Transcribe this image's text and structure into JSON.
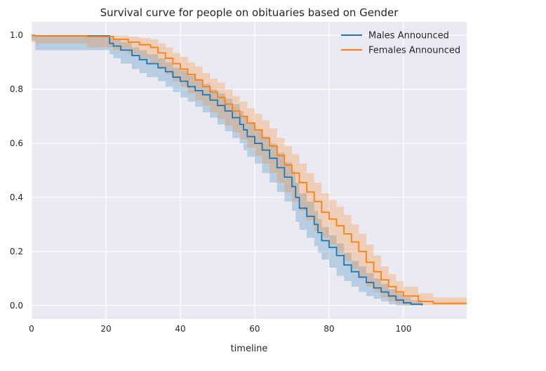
{
  "chart_data": {
    "type": "line",
    "subtype": "step-survival-with-confidence-band",
    "title": "Survival curve for people on obituaries based on Gender",
    "xlabel": "timeline",
    "ylabel": "",
    "xlim": [
      0,
      117
    ],
    "ylim": [
      -0.05,
      1.05
    ],
    "xticks": [
      0,
      20,
      40,
      60,
      80,
      100
    ],
    "yticks": [
      0.0,
      0.2,
      0.4,
      0.6,
      0.8,
      1.0
    ],
    "xtick_labels": [
      "0",
      "20",
      "40",
      "60",
      "80",
      "100"
    ],
    "ytick_labels": [
      "0.0",
      "0.2",
      "0.4",
      "0.6",
      "0.8",
      "1.0"
    ],
    "grid": true,
    "legend_position": "top-right",
    "series": [
      {
        "name": "Males Announced",
        "color": "#1f77b4",
        "x": [
          0,
          1,
          21,
          22,
          24,
          27,
          29,
          31,
          34,
          36,
          38,
          40,
          42,
          44,
          46,
          48,
          50,
          52,
          54,
          56,
          57,
          58,
          60,
          62,
          64,
          66,
          68,
          70,
          71,
          72,
          74,
          76,
          77,
          78,
          80,
          82,
          84,
          86,
          88,
          90,
          92,
          94,
          96,
          98,
          100,
          102,
          105
        ],
        "survival": [
          1.0,
          0.998,
          0.97,
          0.96,
          0.945,
          0.925,
          0.91,
          0.895,
          0.88,
          0.865,
          0.845,
          0.83,
          0.81,
          0.795,
          0.78,
          0.76,
          0.74,
          0.72,
          0.695,
          0.67,
          0.65,
          0.625,
          0.6,
          0.575,
          0.545,
          0.51,
          0.475,
          0.44,
          0.4,
          0.36,
          0.33,
          0.3,
          0.27,
          0.24,
          0.215,
          0.185,
          0.15,
          0.125,
          0.105,
          0.085,
          0.065,
          0.05,
          0.035,
          0.02,
          0.01,
          0.005,
          0.0
        ],
        "ci_lower": [
          0.99,
          0.98,
          0.945,
          0.93,
          0.915,
          0.895,
          0.875,
          0.86,
          0.845,
          0.83,
          0.81,
          0.79,
          0.77,
          0.755,
          0.735,
          0.715,
          0.695,
          0.67,
          0.645,
          0.62,
          0.6,
          0.575,
          0.55,
          0.525,
          0.49,
          0.455,
          0.42,
          0.385,
          0.35,
          0.31,
          0.28,
          0.25,
          0.22,
          0.195,
          0.17,
          0.14,
          0.11,
          0.09,
          0.07,
          0.05,
          0.035,
          0.025,
          0.015,
          0.005,
          0.0,
          0.0,
          0.0
        ],
        "ci_upper": [
          1.0,
          1.0,
          0.99,
          0.985,
          0.975,
          0.955,
          0.945,
          0.93,
          0.915,
          0.9,
          0.88,
          0.87,
          0.85,
          0.835,
          0.82,
          0.8,
          0.785,
          0.765,
          0.745,
          0.72,
          0.7,
          0.675,
          0.65,
          0.625,
          0.6,
          0.565,
          0.53,
          0.495,
          0.455,
          0.415,
          0.385,
          0.35,
          0.32,
          0.29,
          0.26,
          0.23,
          0.195,
          0.165,
          0.145,
          0.12,
          0.1,
          0.08,
          0.06,
          0.045,
          0.03,
          0.02,
          0.01
        ]
      },
      {
        "name": "Females Announced",
        "color": "#ff7f0e",
        "x": [
          0,
          1,
          15,
          22,
          26,
          29,
          32,
          34,
          36,
          38,
          40,
          42,
          44,
          46,
          48,
          50,
          52,
          54,
          56,
          58,
          60,
          62,
          64,
          66,
          68,
          70,
          72,
          74,
          76,
          78,
          80,
          82,
          84,
          86,
          88,
          90,
          92,
          94,
          96,
          98,
          100,
          104,
          108,
          117
        ],
        "survival": [
          1.0,
          0.998,
          0.995,
          0.985,
          0.975,
          0.965,
          0.955,
          0.935,
          0.915,
          0.895,
          0.875,
          0.855,
          0.835,
          0.81,
          0.79,
          0.77,
          0.745,
          0.72,
          0.7,
          0.675,
          0.65,
          0.62,
          0.59,
          0.555,
          0.52,
          0.49,
          0.455,
          0.42,
          0.385,
          0.345,
          0.32,
          0.295,
          0.265,
          0.235,
          0.2,
          0.16,
          0.125,
          0.095,
          0.07,
          0.05,
          0.035,
          0.015,
          0.008,
          0.008
        ],
        "ci_lower": [
          0.985,
          0.975,
          0.97,
          0.955,
          0.945,
          0.93,
          0.915,
          0.895,
          0.875,
          0.855,
          0.83,
          0.81,
          0.785,
          0.76,
          0.74,
          0.715,
          0.69,
          0.665,
          0.64,
          0.615,
          0.585,
          0.555,
          0.525,
          0.49,
          0.455,
          0.42,
          0.385,
          0.35,
          0.315,
          0.275,
          0.25,
          0.225,
          0.195,
          0.165,
          0.135,
          0.1,
          0.07,
          0.05,
          0.03,
          0.015,
          0.005,
          0.0,
          0.0,
          0.0
        ],
        "ci_upper": [
          1.0,
          1.0,
          1.0,
          1.0,
          0.995,
          0.99,
          0.985,
          0.97,
          0.955,
          0.935,
          0.92,
          0.9,
          0.885,
          0.86,
          0.84,
          0.825,
          0.8,
          0.775,
          0.755,
          0.73,
          0.71,
          0.685,
          0.655,
          0.62,
          0.59,
          0.56,
          0.525,
          0.49,
          0.455,
          0.415,
          0.39,
          0.365,
          0.335,
          0.3,
          0.265,
          0.225,
          0.185,
          0.145,
          0.115,
          0.09,
          0.07,
          0.045,
          0.03,
          0.03
        ]
      }
    ]
  },
  "colors": {
    "plot_background": "#eaeaf2",
    "grid": "#ffffff",
    "males": "#1f77b4",
    "females": "#ff7f0e"
  }
}
